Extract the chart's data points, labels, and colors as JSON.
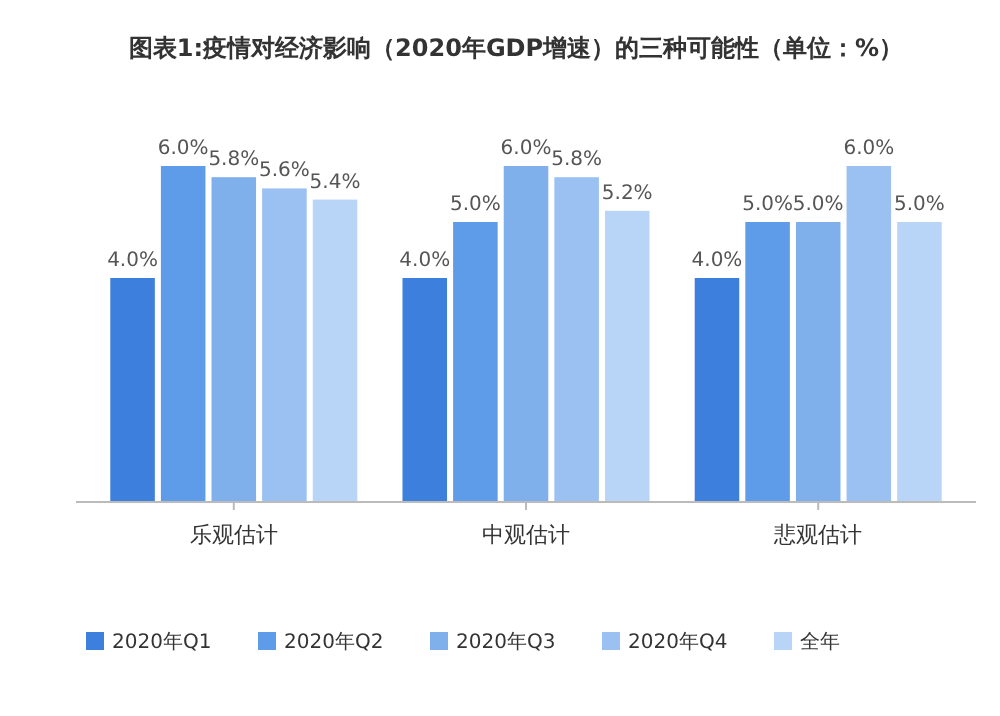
{
  "chart_data": {
    "type": "bar",
    "title": "图表1:疫情对经济影响（2020年GDP增速）的三种可能性（单位：%）",
    "categories": [
      "乐观估计",
      "中观估计",
      "悲观估计"
    ],
    "series": [
      {
        "name": "2020年Q1",
        "color": "#3d7fdc",
        "values": [
          4.0,
          4.0,
          4.0
        ],
        "value_labels": [
          "4.0%",
          "4.0%",
          "4.0%"
        ]
      },
      {
        "name": "2020年Q2",
        "color": "#5e9be8",
        "values": [
          6.0,
          5.0,
          5.0
        ],
        "value_labels": [
          "6.0%",
          "5.0%",
          "5.0%"
        ]
      },
      {
        "name": "2020年Q3",
        "color": "#7fb0ec",
        "values": [
          5.8,
          6.0,
          5.0
        ],
        "value_labels": [
          "5.8%",
          "6.0%",
          "5.0%"
        ]
      },
      {
        "name": "2020年Q4",
        "color": "#9bc0f2",
        "values": [
          5.6,
          5.8,
          6.0
        ],
        "value_labels": [
          "5.6%",
          "5.8%",
          "6.0%"
        ]
      },
      {
        "name": "全年",
        "color": "#b8d4f7",
        "values": [
          5.4,
          5.2,
          5.0
        ],
        "value_labels": [
          "5.4%",
          "5.2%",
          "5.0%"
        ]
      }
    ],
    "legend": "bottom",
    "grid": false
  }
}
